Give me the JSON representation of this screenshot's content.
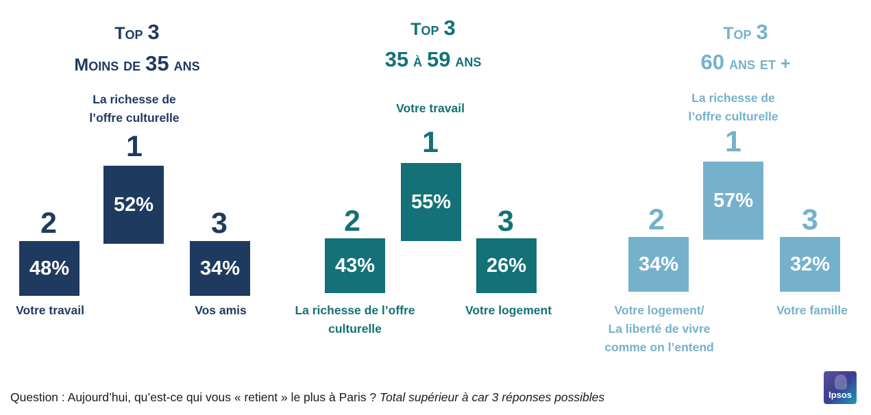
{
  "colors": {
    "group1": "#1f3a5f",
    "group2": "#137177",
    "group3": "#76b1cb"
  },
  "chart_data": [
    {
      "type": "bar",
      "title_line1": "Top 3",
      "title_line2": "Moins de 35 ans",
      "items": [
        {
          "rank": "1",
          "value_label": "52%",
          "value": 52,
          "label": "La richesse de\nl’offre culturelle"
        },
        {
          "rank": "2",
          "value_label": "48%",
          "value": 48,
          "label": "Votre travail"
        },
        {
          "rank": "3",
          "value_label": "34%",
          "value": 34,
          "label": "Vos amis"
        }
      ]
    },
    {
      "type": "bar",
      "title_line1": "Top 3",
      "title_line2": "35 à 59 ans",
      "items": [
        {
          "rank": "1",
          "value_label": "55%",
          "value": 55,
          "label": "Votre travail"
        },
        {
          "rank": "2",
          "value_label": "43%",
          "value": 43,
          "label": "La richesse de l’offre\nculturelle"
        },
        {
          "rank": "3",
          "value_label": "26%",
          "value": 26,
          "label": "Votre logement"
        }
      ]
    },
    {
      "type": "bar",
      "title_line1": "Top 3",
      "title_line2": "60 ans et +",
      "items": [
        {
          "rank": "1",
          "value_label": "57%",
          "value": 57,
          "label": "La richesse de\nl’offre culturelle"
        },
        {
          "rank": "2",
          "value_label": "34%",
          "value": 34,
          "label": "Votre logement/\nLa liberté de vivre\ncomme on l’entend"
        },
        {
          "rank": "3",
          "value_label": "32%",
          "value": 32,
          "label": "Votre famille"
        }
      ]
    }
  ],
  "footer": {
    "question": "Question : Aujourd’hui, qu’est-ce qui vous « retient » le plus à Paris ? ",
    "note": "Total supérieur à car 3 réponses possibles"
  },
  "logo": {
    "text": "Ipsos"
  }
}
